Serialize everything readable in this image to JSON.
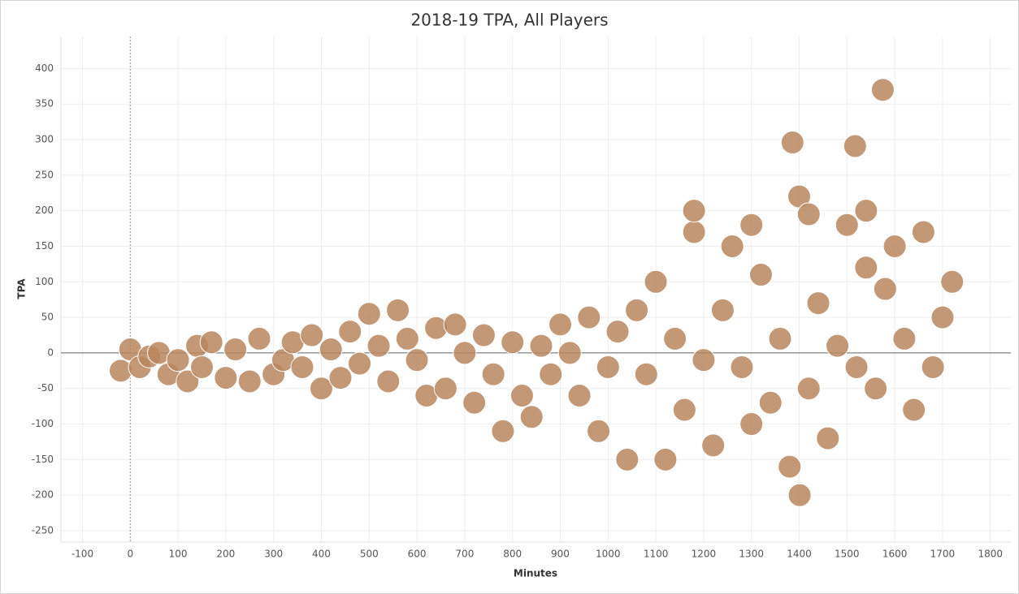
{
  "chart_data": {
    "type": "scatter",
    "title": "2018-19 TPA, All Players",
    "x_label": "Minutes",
    "y_label": "TPA",
    "x": [
      -20,
      0,
      20,
      40,
      60,
      80,
      100,
      120,
      140,
      150,
      170,
      200,
      220,
      250,
      270,
      300,
      320,
      340,
      360,
      380,
      400,
      420,
      440,
      460,
      480,
      500,
      520,
      540,
      560,
      580,
      600,
      620,
      640,
      660,
      680,
      700,
      720,
      740,
      760,
      780,
      800,
      820,
      840,
      860,
      880,
      900,
      920,
      940,
      960,
      980,
      1000,
      1020,
      1040,
      1060,
      1080,
      1100,
      1120,
      1140,
      1160,
      1180,
      1200,
      1220,
      1240,
      1260,
      1280,
      1300,
      1320,
      1340,
      1360,
      1380,
      1400,
      1420,
      1440,
      1460,
      1480,
      1500,
      1520,
      1540,
      1560,
      1580,
      1600,
      1620,
      1640,
      1660,
      1680,
      1700,
      1720,
      1386,
      1517,
      1575,
      1401,
      1180,
      1300,
      1420,
      1540
    ],
    "values": [
      -25,
      5,
      -20,
      -5,
      0,
      -30,
      -10,
      -40,
      10,
      -20,
      15,
      -35,
      5,
      -40,
      20,
      -30,
      -10,
      15,
      -20,
      25,
      -50,
      5,
      -35,
      30,
      -15,
      55,
      10,
      -40,
      60,
      20,
      -10,
      -60,
      35,
      -50,
      40,
      0,
      -70,
      25,
      -30,
      -110,
      15,
      -60,
      -90,
      10,
      -30,
      40,
      0,
      -60,
      50,
      -110,
      -20,
      30,
      -150,
      60,
      -30,
      100,
      -150,
      20,
      -80,
      170,
      -10,
      -130,
      60,
      150,
      -20,
      -100,
      110,
      -70,
      20,
      -160,
      220,
      -50,
      70,
      -120,
      10,
      180,
      -20,
      120,
      -50,
      90,
      150,
      20,
      -80,
      170,
      -20,
      50,
      100,
      296,
      291,
      370,
      -200,
      200,
      180,
      195,
      200
    ],
    "color": "#b9865e",
    "xlim": [
      -145,
      1843
    ],
    "ylim": [
      -266,
      445
    ],
    "xticks": [
      -100,
      0,
      100,
      200,
      300,
      400,
      500,
      600,
      700,
      800,
      900,
      1000,
      1100,
      1200,
      1300,
      1400,
      1500,
      1600,
      1700,
      1800
    ],
    "yticks": [
      -250,
      -200,
      -150,
      -100,
      -50,
      0,
      50,
      100,
      150,
      200,
      250,
      300,
      350,
      400
    ],
    "grid": true
  }
}
